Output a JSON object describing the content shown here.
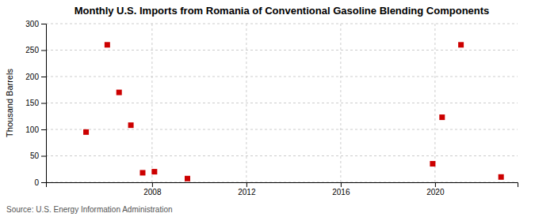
{
  "chart_data": {
    "type": "scatter",
    "title": "Monthly U.S. Imports from Romania of Conventional Gasoline Blending Components",
    "ylabel": "Thousand Barrels",
    "source": "Source: U.S. Energy Information Administration",
    "x": [
      2005.2,
      2006.1,
      2006.6,
      2007.1,
      2007.6,
      2008.1,
      2009.5,
      2019.9,
      2020.3,
      2021.1,
      2022.8
    ],
    "values": [
      95,
      260,
      170,
      108,
      18,
      20,
      7,
      35,
      123,
      260,
      10
    ],
    "color": "#cc0000",
    "marker": "square",
    "xlim": [
      2003.5,
      2023.5
    ],
    "xticks": [
      2008,
      2012,
      2016,
      2020
    ],
    "ylim": [
      0,
      300
    ],
    "yticks": [
      0,
      50,
      100,
      150,
      200,
      250,
      300
    ],
    "grid": true
  }
}
